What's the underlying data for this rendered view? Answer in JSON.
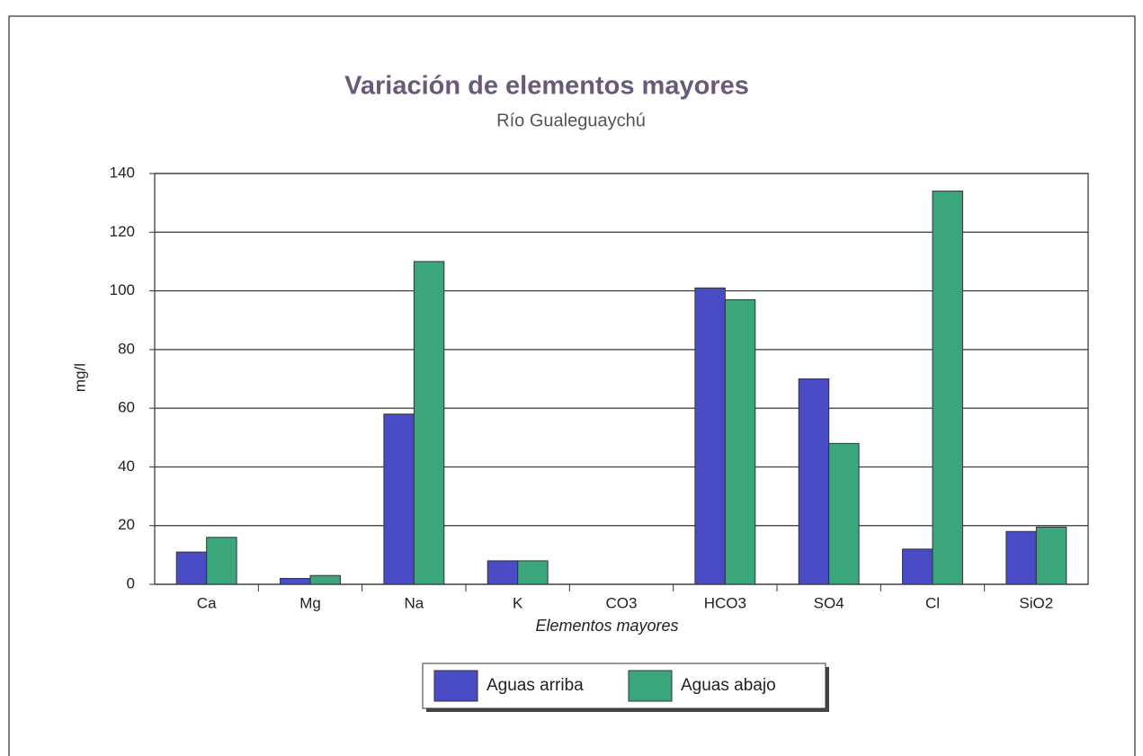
{
  "chart_data": {
    "type": "bar",
    "title": "Variación de elementos mayores",
    "subtitle": "Río Gualeguaychú",
    "x_label": "Elementos mayores",
    "y_label": "mg/l",
    "categories": [
      "Ca",
      "Mg",
      "Na",
      "K",
      "CO3",
      "HCO3",
      "SO4",
      "Cl",
      "SiO2"
    ],
    "series": [
      {
        "name": "Aguas arriba",
        "color": "#4a4cc6",
        "values": [
          11,
          2,
          58,
          8,
          0,
          101,
          70,
          12,
          18
        ]
      },
      {
        "name": "Aguas abajo",
        "color": "#3ba67c",
        "values": [
          16,
          3,
          110,
          8,
          0,
          97,
          48,
          134,
          19.5
        ]
      }
    ],
    "ylim": [
      0,
      140
    ],
    "yticks": [
      0,
      20,
      40,
      60,
      80,
      100,
      120,
      140
    ],
    "grid": true,
    "legend": "bottom"
  }
}
